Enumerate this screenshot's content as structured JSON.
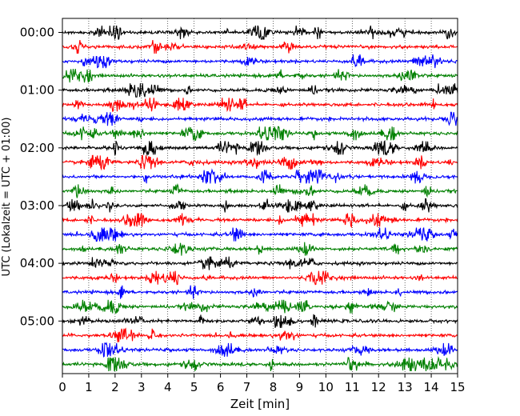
{
  "chart_data": {
    "type": "line",
    "subtype": "helicorder",
    "xlabel": "Zeit  [min]",
    "ylabel": "UTC (Lokalzeit = UTC + 01:00)",
    "xlim": [
      0,
      15
    ],
    "x_ticks": [
      0,
      1,
      2,
      3,
      4,
      5,
      6,
      7,
      8,
      9,
      10,
      11,
      12,
      13,
      14,
      15
    ],
    "x_grid": true,
    "x_grid_style": "dotted",
    "trace_colors": [
      "#000000",
      "#ff0000",
      "#0000ff",
      "#008000"
    ],
    "trace_count": 24,
    "minutes_per_trace": 15,
    "y_tick_labels": [
      {
        "trace": 0,
        "label": "00:00"
      },
      {
        "trace": 4,
        "label": "01:00"
      },
      {
        "trace": 8,
        "label": "02:00"
      },
      {
        "trace": 12,
        "label": "03:00"
      },
      {
        "trace": 16,
        "label": "04:00"
      },
      {
        "trace": 20,
        "label": "05:00"
      }
    ],
    "series": [
      {
        "trace": 0,
        "color": "#000000"
      },
      {
        "trace": 1,
        "color": "#ff0000"
      },
      {
        "trace": 2,
        "color": "#0000ff"
      },
      {
        "trace": 3,
        "color": "#008000"
      },
      {
        "trace": 4,
        "color": "#000000"
      },
      {
        "trace": 5,
        "color": "#ff0000"
      },
      {
        "trace": 6,
        "color": "#0000ff"
      },
      {
        "trace": 7,
        "color": "#008000"
      },
      {
        "trace": 8,
        "color": "#000000"
      },
      {
        "trace": 9,
        "color": "#ff0000"
      },
      {
        "trace": 10,
        "color": "#0000ff"
      },
      {
        "trace": 11,
        "color": "#008000"
      },
      {
        "trace": 12,
        "color": "#000000"
      },
      {
        "trace": 13,
        "color": "#ff0000"
      },
      {
        "trace": 14,
        "color": "#0000ff"
      },
      {
        "trace": 15,
        "color": "#008000"
      },
      {
        "trace": 16,
        "color": "#000000"
      },
      {
        "trace": 17,
        "color": "#ff0000"
      },
      {
        "trace": 18,
        "color": "#0000ff"
      },
      {
        "trace": 19,
        "color": "#008000"
      },
      {
        "trace": 20,
        "color": "#000000"
      },
      {
        "trace": 21,
        "color": "#ff0000"
      },
      {
        "trace": 22,
        "color": "#0000ff"
      },
      {
        "trace": 23,
        "color": "#008000"
      }
    ]
  }
}
